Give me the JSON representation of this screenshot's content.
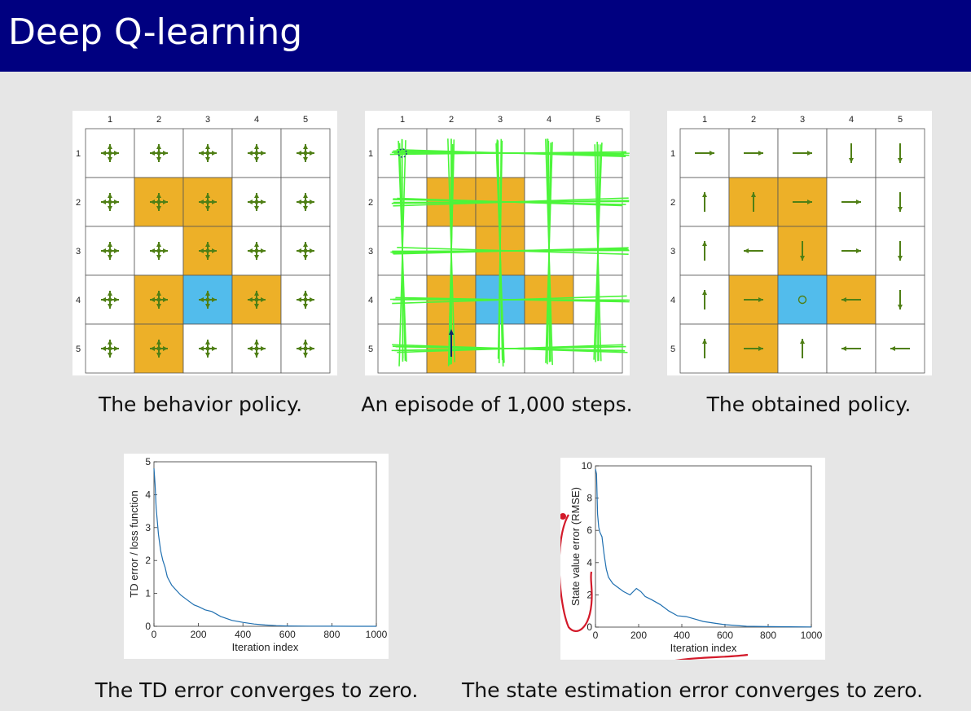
{
  "slide": {
    "title": "Deep Q-learning"
  },
  "colors": {
    "header": "#000080",
    "forbidden": "#EDB028",
    "target": "#52BCEC",
    "arrow": "#4F7F15",
    "trajectory": "#4CF53A",
    "series": "#1F6FB0",
    "annotation": "#D31A2A"
  },
  "grids": {
    "col_labels": [
      "1",
      "2",
      "3",
      "4",
      "5"
    ],
    "row_labels": [
      "1",
      "2",
      "3",
      "4",
      "5"
    ],
    "cells": [
      [
        "white",
        "white",
        "white",
        "white",
        "white"
      ],
      [
        "white",
        "forbidden",
        "forbidden",
        "white",
        "white"
      ],
      [
        "white",
        "white",
        "forbidden",
        "white",
        "white"
      ],
      [
        "white",
        "forbidden",
        "target",
        "forbidden",
        "white"
      ],
      [
        "white",
        "forbidden",
        "white",
        "white",
        "white"
      ]
    ],
    "obtained_policy": [
      [
        "right",
        "right",
        "right",
        "down",
        "down"
      ],
      [
        "up",
        "up",
        "right",
        "right",
        "down"
      ],
      [
        "up",
        "left",
        "down",
        "right",
        "down"
      ],
      [
        "up",
        "right",
        "stay",
        "left",
        "down"
      ],
      [
        "up",
        "right",
        "up",
        "left",
        "left"
      ]
    ]
  },
  "captions": {
    "behavior": "The behavior policy.",
    "episode": "An episode of 1,000 steps.",
    "obtained": "The obtained policy.",
    "td": "The TD error converges to zero.",
    "state": "The state estimation error converges to zero."
  },
  "chart_data": [
    {
      "type": "line",
      "xlabel": "Iteration index",
      "ylabel": "TD error / loss function",
      "xlim": [
        0,
        1000
      ],
      "ylim": [
        0,
        5
      ],
      "xticks": [
        0,
        200,
        400,
        600,
        800,
        1000
      ],
      "yticks": [
        0,
        1,
        2,
        3,
        4,
        5
      ],
      "series": [
        {
          "x": [
            0,
            5,
            10,
            20,
            30,
            40,
            50,
            60,
            80,
            100,
            120,
            150,
            180,
            200,
            230,
            260,
            300,
            350,
            400,
            450,
            500,
            550,
            600,
            700,
            800,
            900,
            1000
          ],
          "y": [
            4.8,
            4.3,
            3.6,
            2.8,
            2.3,
            2.0,
            1.8,
            1.5,
            1.25,
            1.1,
            0.95,
            0.8,
            0.65,
            0.6,
            0.5,
            0.45,
            0.3,
            0.18,
            0.12,
            0.07,
            0.04,
            0.02,
            0.01,
            0.005,
            0.002,
            0.001,
            0.0
          ]
        }
      ]
    },
    {
      "type": "line",
      "xlabel": "Iteration index",
      "ylabel": "State value error (RMSE)",
      "xlim": [
        0,
        1000
      ],
      "ylim": [
        0,
        10
      ],
      "xticks": [
        0,
        200,
        400,
        600,
        800,
        1000
      ],
      "yticks": [
        0,
        2,
        4,
        6,
        8,
        10
      ],
      "series": [
        {
          "x": [
            0,
            5,
            10,
            15,
            20,
            30,
            40,
            50,
            60,
            80,
            100,
            130,
            160,
            190,
            210,
            230,
            260,
            300,
            340,
            380,
            420,
            460,
            500,
            550,
            600,
            650,
            700,
            800,
            900,
            1000
          ],
          "y": [
            9.8,
            9.5,
            7.0,
            6.2,
            5.9,
            5.6,
            4.5,
            3.6,
            3.1,
            2.7,
            2.5,
            2.2,
            2.0,
            2.4,
            2.2,
            1.9,
            1.7,
            1.4,
            1.0,
            0.7,
            0.65,
            0.5,
            0.35,
            0.25,
            0.15,
            0.1,
            0.05,
            0.03,
            0.02,
            0.01
          ]
        }
      ]
    }
  ]
}
